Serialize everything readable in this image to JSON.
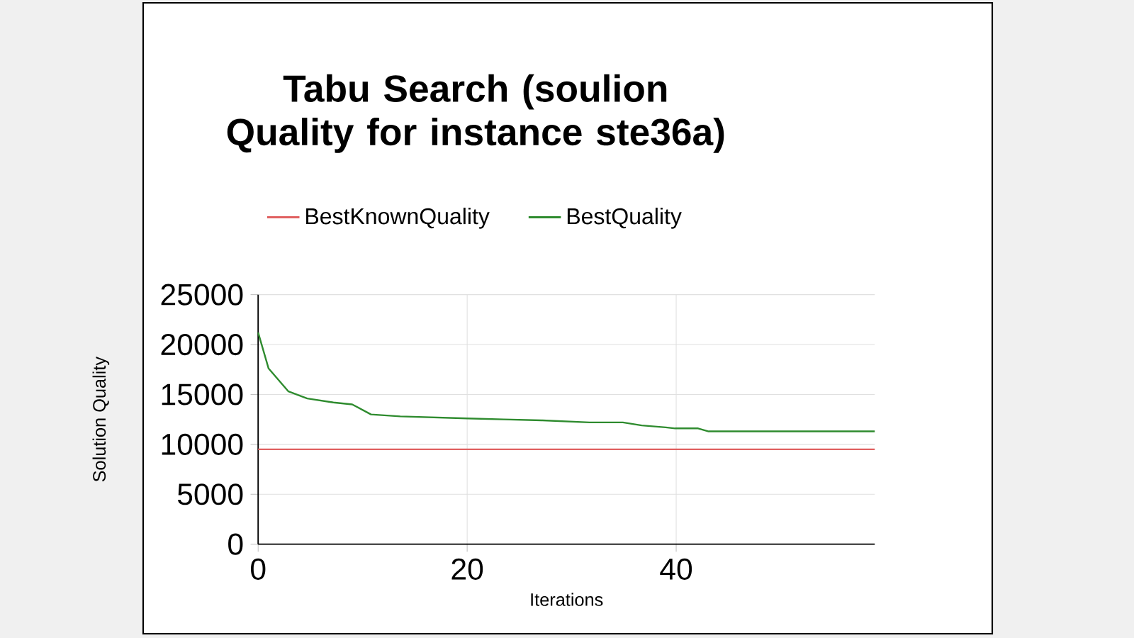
{
  "chart_data": {
    "type": "line",
    "title": "Tabu Search (soulion Quality for instance ste36a)",
    "xlabel": "Iterations",
    "ylabel": "Solution Quality",
    "series": [
      {
        "name": "BestKnownQuality",
        "color": "#e06060",
        "x": [
          0,
          59
        ],
        "values": [
          9500,
          9500
        ]
      },
      {
        "name": "BestQuality",
        "color": "#2e8b2e",
        "x": [
          0,
          1,
          2.9,
          4.7,
          7.2,
          9,
          10.8,
          13.6,
          20,
          23.5,
          27.2,
          31.7,
          34.9,
          36.7,
          39,
          39.9,
          42.1,
          43.1,
          59
        ],
        "values": [
          21200,
          17600,
          15300,
          14600,
          14200,
          14000,
          13000,
          12800,
          12600,
          12500,
          12400,
          12200,
          12200,
          11900,
          11700,
          11600,
          11600,
          11300,
          11300
        ]
      }
    ],
    "xlim": [
      0,
      59
    ],
    "ylim": [
      0,
      25000
    ],
    "xticks": [
      0,
      20,
      40
    ],
    "yticks": [
      0,
      5000,
      10000,
      15000,
      20000,
      25000
    ],
    "grid": true,
    "legend": "top",
    "marker": "none",
    "line_style": "solid"
  }
}
